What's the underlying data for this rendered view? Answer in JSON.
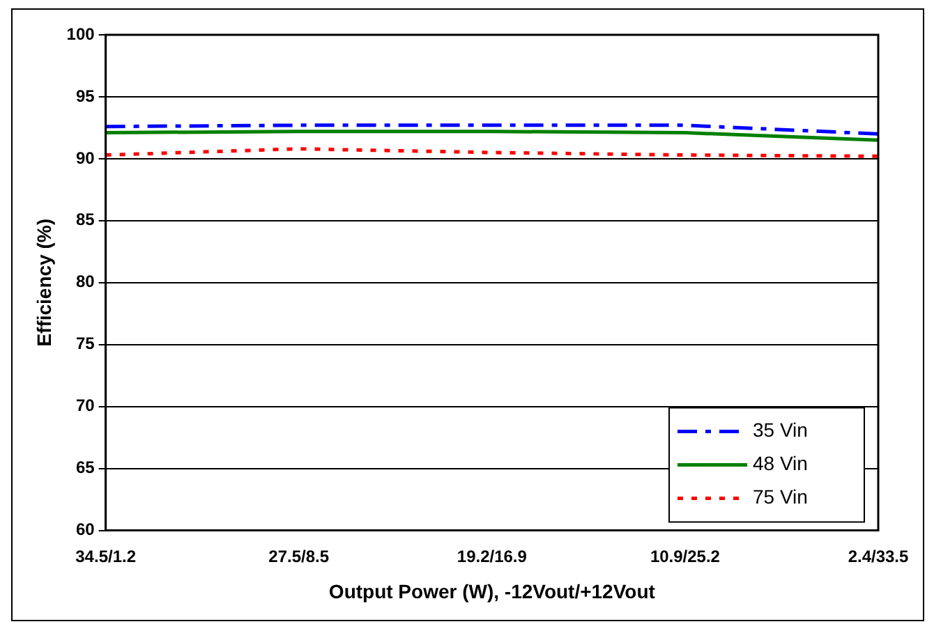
{
  "chart_data": {
    "type": "line",
    "xlabel": "Output Power (W), -12Vout/+12Vout",
    "ylabel": "Efficiency (%)",
    "categories": [
      "34.5/1.2",
      "27.5/8.5",
      "19.2/16.9",
      "10.9/25.2",
      "2.4/33.5"
    ],
    "series": [
      {
        "name": "35 Vin",
        "color": "#0000ff",
        "line_style": "dashdot",
        "values": [
          92.6,
          92.7,
          92.7,
          92.7,
          92.0
        ]
      },
      {
        "name": "48 Vin",
        "color": "#008000",
        "line_style": "solid",
        "values": [
          92.1,
          92.2,
          92.2,
          92.1,
          91.5
        ]
      },
      {
        "name": "75 Vin",
        "color": "#ff0000",
        "line_style": "dotted",
        "values": [
          90.3,
          90.8,
          90.5,
          90.3,
          90.2
        ]
      }
    ],
    "ylim": [
      60,
      100
    ],
    "yticks": [
      60,
      65,
      70,
      75,
      80,
      85,
      90,
      95,
      100
    ],
    "grid": "y",
    "legend": "bottom right",
    "marker": "none"
  }
}
